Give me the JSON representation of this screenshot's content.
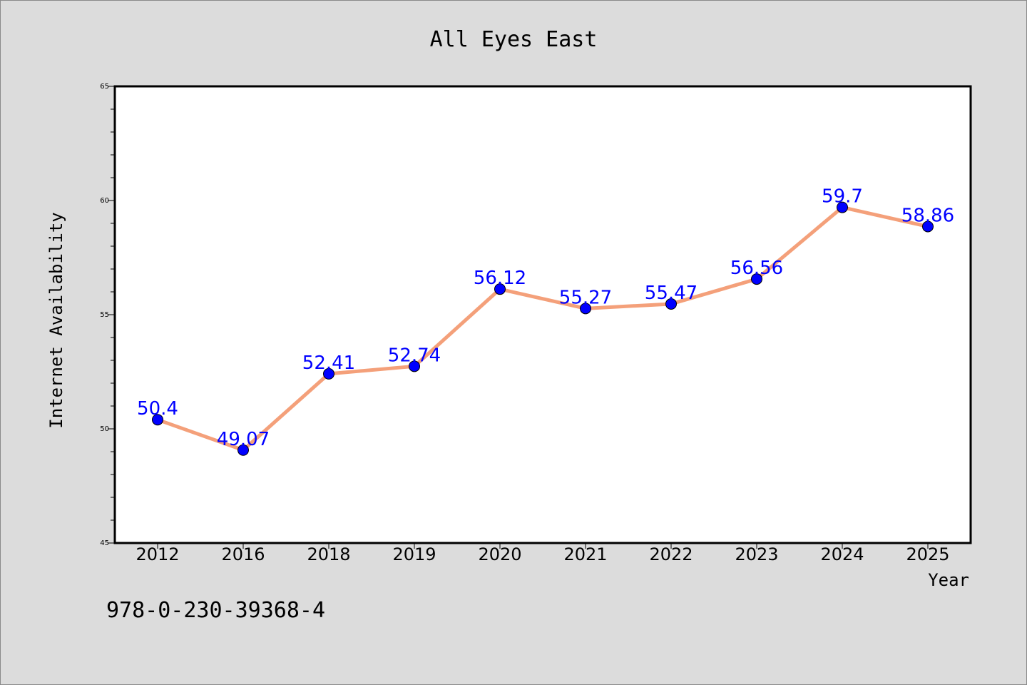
{
  "chart_data": {
    "type": "line",
    "title": "All Eyes East",
    "xlabel": "Year",
    "ylabel": "Internet Availability",
    "categories": [
      "2012",
      "2016",
      "2018",
      "2019",
      "2020",
      "2021",
      "2022",
      "2023",
      "2024",
      "2025"
    ],
    "series": [
      {
        "values": [
          50.4,
          49.07,
          52.41,
          52.74,
          56.12,
          55.27,
          55.47,
          56.56,
          59.7,
          58.86
        ],
        "labels": [
          "50.4",
          "49.07",
          "52.41",
          "52.74",
          "56.12",
          "55.27",
          "55.47",
          "56.56",
          "59.7",
          "58.86"
        ],
        "line_color": "#f4a07a",
        "marker_color": "#0000ff"
      }
    ],
    "ylim": [
      45,
      65
    ],
    "yticks": [
      "45",
      "50",
      "55",
      "60",
      "65"
    ],
    "grid": false,
    "legend": "none"
  },
  "footer": {
    "isbn": "978-0-230-39368-4"
  },
  "colors": {
    "background": "#dcdcdc",
    "plot_background": "#ffffff",
    "line": "#f4a07a",
    "marker": "#0000ff",
    "data_label": "#0000ff"
  }
}
